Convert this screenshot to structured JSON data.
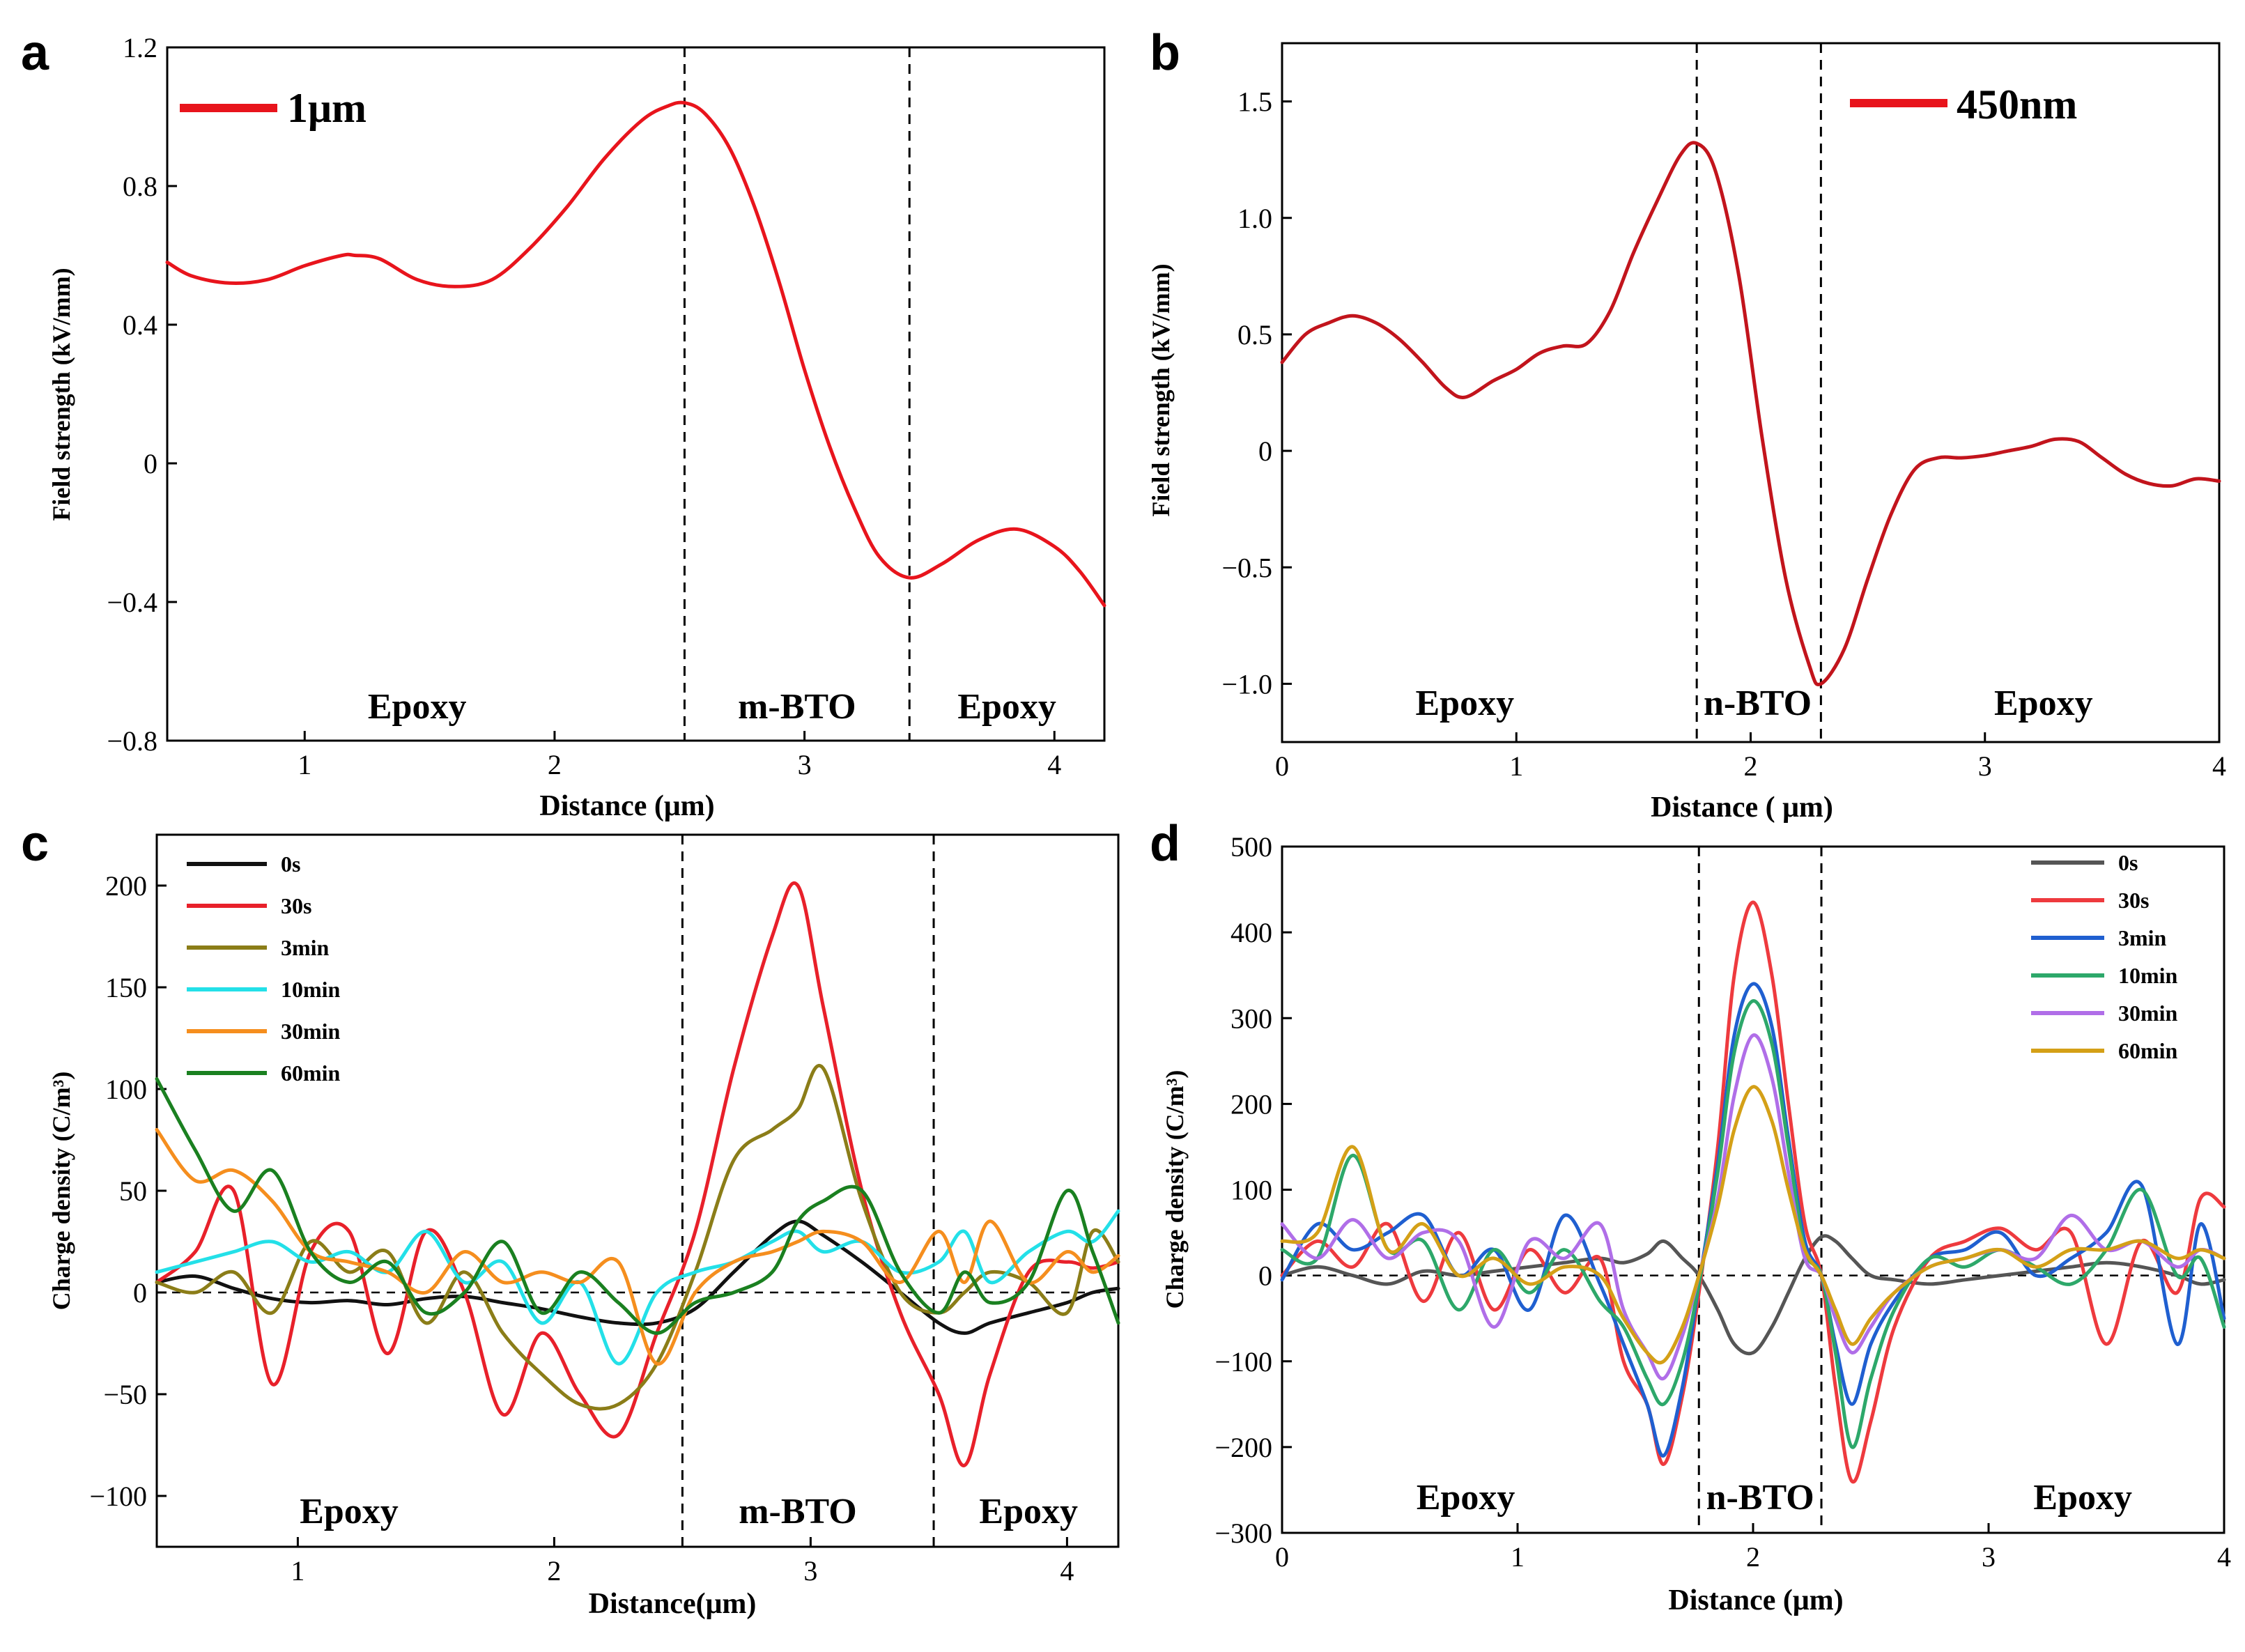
{
  "chart_data": [
    {
      "panel": "a",
      "type": "line",
      "xlabel": "Distance (μm)",
      "ylabel": "Field strength (kV/mm)",
      "xlim": [
        0.45,
        4.2
      ],
      "ylim": [
        -0.8,
        1.2
      ],
      "xticks": [
        1,
        2,
        3,
        4
      ],
      "yticks": [
        -0.8,
        -0.4,
        0,
        0.4,
        0.8,
        1.2
      ],
      "xtick_labels": [
        "1",
        "2",
        "3",
        "4"
      ],
      "ytick_labels": [
        "−0.8",
        "−0.4",
        "0",
        "0.4",
        "0.8",
        "1.2"
      ],
      "vlines": [
        2.52,
        3.42
      ],
      "regions": [
        {
          "label": "Epoxy",
          "x": 1.45
        },
        {
          "label": "m-BTO",
          "x": 2.97
        },
        {
          "label": "Epoxy",
          "x": 3.81
        }
      ],
      "series": [
        {
          "name": "1μm",
          "color": "#e8141c",
          "x": [
            0.45,
            0.55,
            0.7,
            0.85,
            1.0,
            1.15,
            1.2,
            1.3,
            1.45,
            1.6,
            1.75,
            1.9,
            2.05,
            2.2,
            2.35,
            2.45,
            2.52,
            2.6,
            2.7,
            2.8,
            2.9,
            3.0,
            3.1,
            3.2,
            3.3,
            3.42,
            3.55,
            3.7,
            3.85,
            4.0,
            4.1,
            4.2
          ],
          "y": [
            0.58,
            0.54,
            0.52,
            0.53,
            0.57,
            0.6,
            0.6,
            0.59,
            0.53,
            0.51,
            0.53,
            0.62,
            0.74,
            0.88,
            0.99,
            1.03,
            1.04,
            1.01,
            0.91,
            0.74,
            0.52,
            0.27,
            0.05,
            -0.13,
            -0.27,
            -0.33,
            -0.29,
            -0.22,
            -0.19,
            -0.24,
            -0.31,
            -0.41
          ]
        }
      ]
    },
    {
      "panel": "b",
      "type": "line",
      "xlabel": "Distance ( μm)",
      "ylabel": "Field strength (kV/mm)",
      "xlim": [
        0,
        4
      ],
      "ylim": [
        -1.25,
        1.75
      ],
      "xticks": [
        0,
        1,
        2,
        3,
        4
      ],
      "yticks": [
        -1.0,
        -0.5,
        0,
        0.5,
        1.0,
        1.5
      ],
      "xtick_labels": [
        "0",
        "1",
        "2",
        "3",
        "4"
      ],
      "ytick_labels": [
        "−1.0",
        "−0.5",
        "0",
        "0.5",
        "1.0",
        "1.5"
      ],
      "vlines": [
        1.77,
        2.3
      ],
      "regions": [
        {
          "label": "Epoxy",
          "x": 0.78
        },
        {
          "label": "n-BTO",
          "x": 2.03
        },
        {
          "label": "Epoxy",
          "x": 3.25
        }
      ],
      "series": [
        {
          "name": "450nm",
          "color": "#c2141c",
          "x": [
            0.0,
            0.1,
            0.2,
            0.3,
            0.4,
            0.5,
            0.6,
            0.7,
            0.78,
            0.9,
            1.0,
            1.1,
            1.2,
            1.3,
            1.4,
            1.5,
            1.6,
            1.7,
            1.77,
            1.85,
            1.95,
            2.05,
            2.15,
            2.25,
            2.3,
            2.4,
            2.5,
            2.6,
            2.7,
            2.8,
            2.9,
            3.0,
            3.1,
            3.2,
            3.3,
            3.4,
            3.5,
            3.6,
            3.7,
            3.8,
            3.9,
            4.0
          ],
          "y": [
            0.38,
            0.5,
            0.55,
            0.58,
            0.55,
            0.48,
            0.38,
            0.27,
            0.23,
            0.3,
            0.35,
            0.42,
            0.45,
            0.46,
            0.6,
            0.85,
            1.07,
            1.27,
            1.32,
            1.2,
            0.75,
            0.05,
            -0.55,
            -0.92,
            -1.0,
            -0.85,
            -0.55,
            -0.27,
            -0.08,
            -0.03,
            -0.03,
            -0.02,
            0.0,
            0.02,
            0.05,
            0.04,
            -0.03,
            -0.1,
            -0.14,
            -0.15,
            -0.12,
            -0.13
          ]
        }
      ]
    },
    {
      "panel": "c",
      "type": "line",
      "xlabel": "Distance(μm)",
      "ylabel": "Charge density (C/m³)",
      "xlim": [
        0.45,
        4.2
      ],
      "ylim": [
        -125,
        225
      ],
      "xticks": [
        1,
        2,
        3,
        4
      ],
      "yticks": [
        -100,
        -50,
        0,
        50,
        100,
        150,
        200
      ],
      "xtick_labels": [
        "1",
        "2",
        "3",
        "4"
      ],
      "ytick_labels": [
        "−100",
        "−50",
        "0",
        "50",
        "100",
        "150",
        "200"
      ],
      "vlines": [
        2.5,
        3.48
      ],
      "regions": [
        {
          "label": "Epoxy",
          "x": 1.2
        },
        {
          "label": "m-BTO",
          "x": 2.95
        },
        {
          "label": "Epoxy",
          "x": 3.85
        }
      ],
      "x": [
        0.45,
        0.6,
        0.75,
        0.9,
        1.05,
        1.2,
        1.35,
        1.5,
        1.65,
        1.8,
        1.95,
        2.1,
        2.25,
        2.4,
        2.55,
        2.7,
        2.85,
        2.95,
        3.05,
        3.2,
        3.35,
        3.5,
        3.6,
        3.7,
        3.85,
        4.0,
        4.1,
        4.2
      ],
      "series": [
        {
          "name": "0s",
          "color": "#111111",
          "values": [
            5,
            8,
            2,
            -3,
            -5,
            -4,
            -6,
            -3,
            -2,
            -5,
            -8,
            -12,
            -15,
            -15,
            -8,
            10,
            28,
            35,
            28,
            15,
            0,
            -15,
            -20,
            -15,
            -10,
            -5,
            0,
            2
          ]
        },
        {
          "name": "30s",
          "color": "#e8202a",
          "values": [
            5,
            20,
            50,
            -45,
            20,
            30,
            -30,
            30,
            0,
            -60,
            -20,
            -50,
            -70,
            -20,
            30,
            110,
            175,
            200,
            140,
            50,
            -10,
            -50,
            -85,
            -40,
            10,
            15,
            12,
            15
          ]
        },
        {
          "name": "3min",
          "color": "#8b7d18",
          "values": [
            5,
            0,
            10,
            -10,
            25,
            10,
            20,
            -15,
            10,
            -20,
            -40,
            -55,
            -55,
            -35,
            10,
            65,
            80,
            90,
            110,
            45,
            0,
            -10,
            0,
            10,
            5,
            -10,
            30,
            15
          ]
        },
        {
          "name": "10min",
          "color": "#23e0e8",
          "values": [
            10,
            15,
            20,
            25,
            15,
            20,
            10,
            30,
            5,
            15,
            -15,
            5,
            -35,
            0,
            10,
            15,
            25,
            30,
            20,
            25,
            10,
            15,
            30,
            5,
            20,
            30,
            25,
            40
          ]
        },
        {
          "name": "30min",
          "color": "#f58e1e",
          "values": [
            80,
            55,
            60,
            45,
            20,
            15,
            10,
            0,
            20,
            5,
            10,
            5,
            15,
            -35,
            0,
            15,
            20,
            25,
            30,
            25,
            5,
            30,
            5,
            35,
            5,
            20,
            10,
            18
          ]
        },
        {
          "name": "60min",
          "color": "#1a8020",
          "values": [
            105,
            70,
            40,
            60,
            20,
            5,
            15,
            -10,
            0,
            25,
            -10,
            10,
            -5,
            -20,
            -5,
            0,
            10,
            35,
            45,
            50,
            10,
            -10,
            10,
            -5,
            5,
            50,
            20,
            -15
          ]
        }
      ]
    },
    {
      "panel": "d",
      "type": "line",
      "xlabel": "Distance (μm)",
      "ylabel": "Charge density (C/m³)",
      "xlim": [
        0,
        4
      ],
      "ylim": [
        -300,
        500
      ],
      "xticks": [
        0,
        1,
        2,
        3,
        4
      ],
      "yticks": [
        -300,
        -200,
        -100,
        0,
        100,
        200,
        300,
        400,
        500
      ],
      "xtick_labels": [
        "0",
        "1",
        "2",
        "3",
        "4"
      ],
      "ytick_labels": [
        "−300",
        "−200",
        "−100",
        "0",
        "100",
        "200",
        "300",
        "400",
        "500"
      ],
      "vlines": [
        1.77,
        2.29
      ],
      "regions": [
        {
          "label": "Epoxy",
          "x": 0.78
        },
        {
          "label": "n-BTO",
          "x": 2.03
        },
        {
          "label": "Epoxy",
          "x": 3.4
        }
      ],
      "x": [
        0.0,
        0.15,
        0.3,
        0.45,
        0.6,
        0.75,
        0.9,
        1.05,
        1.2,
        1.35,
        1.45,
        1.55,
        1.62,
        1.7,
        1.77,
        1.85,
        1.92,
        2.0,
        2.08,
        2.15,
        2.22,
        2.29,
        2.35,
        2.42,
        2.5,
        2.6,
        2.75,
        2.9,
        3.05,
        3.2,
        3.35,
        3.5,
        3.65,
        3.8,
        3.9,
        4.0
      ],
      "series": [
        {
          "name": "0s",
          "color": "#555555",
          "values": [
            0,
            10,
            0,
            -10,
            5,
            0,
            5,
            10,
            15,
            20,
            15,
            25,
            40,
            20,
            0,
            -40,
            -80,
            -90,
            -60,
            -20,
            20,
            45,
            40,
            20,
            0,
            -5,
            -10,
            -5,
            0,
            5,
            10,
            15,
            10,
            0,
            -10,
            -5
          ]
        },
        {
          "name": "30s",
          "color": "#ee3a3e",
          "values": [
            0,
            40,
            10,
            60,
            -30,
            50,
            -40,
            30,
            -20,
            20,
            -100,
            -150,
            -220,
            -140,
            -20,
            150,
            350,
            435,
            350,
            200,
            60,
            0,
            -130,
            -240,
            -170,
            -60,
            20,
            40,
            55,
            30,
            50,
            -80,
            40,
            -20,
            90,
            80
          ]
        },
        {
          "name": "3min",
          "color": "#1f5fd0",
          "values": [
            -5,
            60,
            30,
            50,
            70,
            0,
            30,
            -40,
            70,
            -10,
            -80,
            -150,
            -210,
            -130,
            -10,
            130,
            280,
            340,
            290,
            160,
            40,
            0,
            -80,
            -150,
            -80,
            -30,
            20,
            30,
            50,
            0,
            20,
            50,
            105,
            -80,
            60,
            -50
          ]
        },
        {
          "name": "10min",
          "color": "#2da86a",
          "values": [
            30,
            20,
            140,
            30,
            40,
            -40,
            30,
            -20,
            30,
            -30,
            -60,
            -120,
            -150,
            -100,
            -10,
            120,
            260,
            320,
            270,
            150,
            30,
            0,
            -90,
            -200,
            -120,
            -40,
            20,
            10,
            30,
            10,
            -10,
            30,
            100,
            0,
            20,
            -60
          ]
        },
        {
          "name": "30min",
          "color": "#b06ee8",
          "values": [
            60,
            20,
            65,
            20,
            50,
            40,
            -60,
            40,
            20,
            60,
            -40,
            -90,
            -120,
            -70,
            0,
            90,
            210,
            280,
            230,
            120,
            20,
            0,
            -50,
            -90,
            -60,
            -20,
            10,
            20,
            30,
            20,
            70,
            30,
            40,
            10,
            30,
            20
          ]
        },
        {
          "name": "60min",
          "color": "#d4a017",
          "values": [
            40,
            50,
            150,
            30,
            60,
            0,
            20,
            -10,
            10,
            0,
            -50,
            -90,
            -100,
            -60,
            0,
            80,
            170,
            220,
            180,
            100,
            30,
            0,
            -40,
            -80,
            -50,
            -20,
            10,
            20,
            30,
            10,
            30,
            30,
            40,
            20,
            30,
            20
          ]
        }
      ]
    }
  ]
}
